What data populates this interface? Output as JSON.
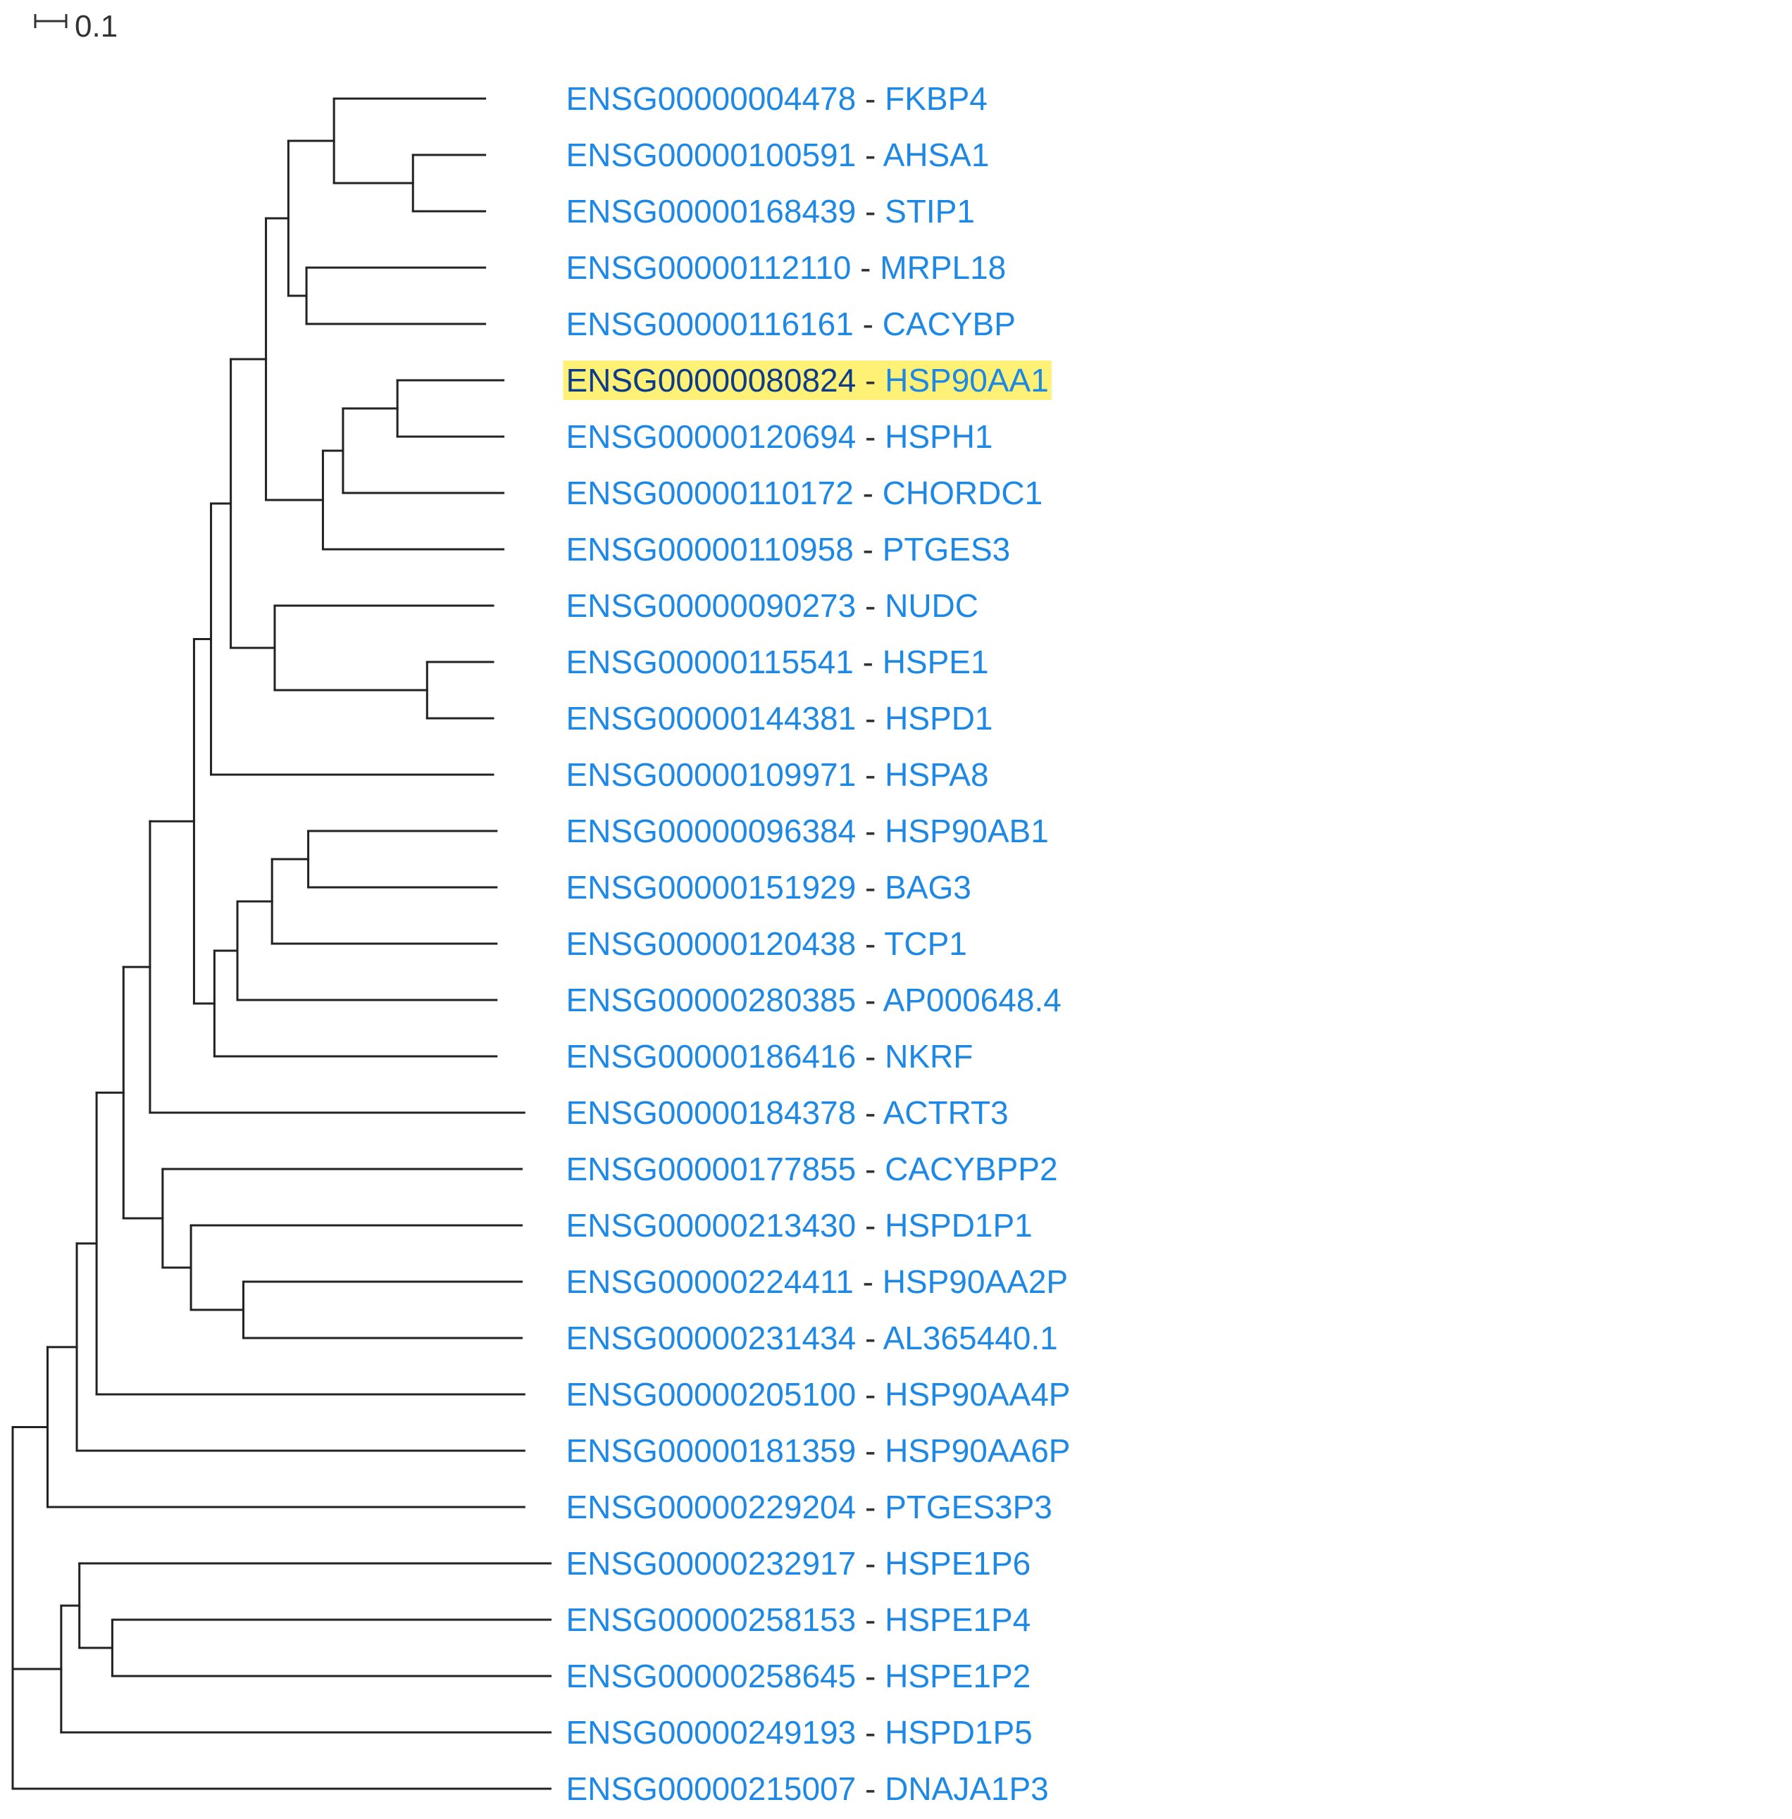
{
  "scale_bar": {
    "label": "0.1",
    "value": 0.1
  },
  "label_separator": " - ",
  "leaves": [
    {
      "gene_id": "ENSG00000004478",
      "symbol": "FKBP4"
    },
    {
      "gene_id": "ENSG00000100591",
      "symbol": "AHSA1"
    },
    {
      "gene_id": "ENSG00000168439",
      "symbol": "STIP1"
    },
    {
      "gene_id": "ENSG00000112110",
      "symbol": "MRPL18"
    },
    {
      "gene_id": "ENSG00000116161",
      "symbol": "CACYBP"
    },
    {
      "gene_id": "ENSG00000080824",
      "symbol": "HSP90AA1",
      "highlighted": true
    },
    {
      "gene_id": "ENSG00000120694",
      "symbol": "HSPH1"
    },
    {
      "gene_id": "ENSG00000110172",
      "symbol": "CHORDC1"
    },
    {
      "gene_id": "ENSG00000110958",
      "symbol": "PTGES3"
    },
    {
      "gene_id": "ENSG00000090273",
      "symbol": "NUDC"
    },
    {
      "gene_id": "ENSG00000115541",
      "symbol": "HSPE1"
    },
    {
      "gene_id": "ENSG00000144381",
      "symbol": "HSPD1"
    },
    {
      "gene_id": "ENSG00000109971",
      "symbol": "HSPA8"
    },
    {
      "gene_id": "ENSG00000096384",
      "symbol": "HSP90AB1"
    },
    {
      "gene_id": "ENSG00000151929",
      "symbol": "BAG3"
    },
    {
      "gene_id": "ENSG00000120438",
      "symbol": "TCP1"
    },
    {
      "gene_id": "ENSG00000280385",
      "symbol": "AP000648.4"
    },
    {
      "gene_id": "ENSG00000186416",
      "symbol": "NKRF"
    },
    {
      "gene_id": "ENSG00000184378",
      "symbol": "ACTRT3"
    },
    {
      "gene_id": "ENSG00000177855",
      "symbol": "CACYBPP2"
    },
    {
      "gene_id": "ENSG00000213430",
      "symbol": "HSPD1P1"
    },
    {
      "gene_id": "ENSG00000224411",
      "symbol": "HSP90AA2P"
    },
    {
      "gene_id": "ENSG00000231434",
      "symbol": "AL365440.1"
    },
    {
      "gene_id": "ENSG00000205100",
      "symbol": "HSP90AA4P"
    },
    {
      "gene_id": "ENSG00000181359",
      "symbol": "HSP90AA6P"
    },
    {
      "gene_id": "ENSG00000229204",
      "symbol": "PTGES3P3"
    },
    {
      "gene_id": "ENSG00000232917",
      "symbol": "HSPE1P6"
    },
    {
      "gene_id": "ENSG00000258153",
      "symbol": "HSPE1P4"
    },
    {
      "gene_id": "ENSG00000258645",
      "symbol": "HSPE1P2"
    },
    {
      "gene_id": "ENSG00000249193",
      "symbol": "HSPD1P5"
    },
    {
      "gene_id": "ENSG00000215007",
      "symbol": "DNAJA1P3"
    }
  ],
  "tree": {
    "name": "root",
    "children": [
      {
        "name": "n-a",
        "length": 0.1125,
        "children": [
          {
            "name": "n-b",
            "length": 0.0944,
            "children": [
              {
                "name": "n-c",
                "length": 0.0638,
                "children": [
                  {
                    "name": "n-d",
                    "length": 0.0868,
                    "children": [
                      {
                        "name": "n-e",
                        "length": 0.0855,
                        "children": [
                          {
                            "name": "n-f",
                            "length": 0.1421,
                            "children": [
                              {
                                "name": "n-g",
                                "length": 0.0548,
                                "children": [
                                  {
                                    "name": "n-h",
                                    "length": 0.0638,
                                    "children": [
                                      {
                                        "name": "n-i",
                                        "length": 0.1135,
                                        "children": [
                                          {
                                            "name": "n-j",
                                            "length": 0.0723,
                                            "children": [
                                              {
                                                "name": "n-k",
                                                "length": 0.1472,
                                                "children": [
                                                  {
                                                    "leaf": 0,
                                                    "length": 0.4874
                                                  },
                                                  {
                                                    "name": "n-l",
                                                    "length": 0.2548,
                                                    "children": [
                                                      {
                                                        "leaf": 1,
                                                        "length": 0.2326
                                                      },
                                                      {
                                                        "leaf": 2,
                                                        "length": 0.2326
                                                      }
                                                    ]
                                                  }
                                                ]
                                              },
                                              {
                                                "name": "n-m",
                                                "length": 0.0584,
                                                "children": [
                                                  {
                                                    "leaf": 3,
                                                    "length": 0.5762
                                                  },
                                                  {
                                                    "leaf": 4,
                                                    "length": 0.5762
                                                  }
                                                ]
                                              }
                                            ]
                                          },
                                          {
                                            "name": "n-n",
                                            "length": 0.1838,
                                            "children": [
                                              {
                                                "name": "n-o",
                                                "length": 0.0648,
                                                "children": [
                                                  {
                                                    "name": "n-p",
                                                    "length": 0.1755,
                                                    "children": [
                                                      {
                                                        "leaf": 5,
                                                        "length": 0.3419
                                                      },
                                                      {
                                                        "leaf": 6,
                                                        "length": 0.3419
                                                      }
                                                    ]
                                                  },
                                                  {
                                                    "leaf": 7,
                                                    "length": 0.5174
                                                  }
                                                ]
                                              },
                                              {
                                                "leaf": 8,
                                                "length": 0.5822
                                              }
                                            ]
                                          }
                                        ]
                                      },
                                      {
                                        "name": "n-q",
                                        "length": 0.1417,
                                        "children": [
                                          {
                                            "leaf": 9,
                                            "length": 0.7047
                                          },
                                          {
                                            "name": "n-r",
                                            "length": 0.4917,
                                            "children": [
                                              {
                                                "leaf": 10,
                                                "length": 0.213
                                              },
                                              {
                                                "leaf": 11,
                                                "length": 0.213
                                              }
                                            ]
                                          }
                                        ]
                                      }
                                    ]
                                  },
                                  {
                                    "leaf": 12,
                                    "length": 0.9101
                                  }
                                ]
                              },
                              {
                                "name": "n-s",
                                "length": 0.0658,
                                "children": [
                                  {
                                    "name": "n-t",
                                    "length": 0.0741,
                                    "children": [
                                      {
                                        "name": "n-u",
                                        "length": 0.1118,
                                        "children": [
                                          {
                                            "name": "n-v",
                                            "length": 0.1168,
                                            "children": [
                                              {
                                                "leaf": 13,
                                                "length": 0.6073
                                              },
                                              {
                                                "leaf": 14,
                                                "length": 0.6073
                                              }
                                            ]
                                          },
                                          {
                                            "leaf": 15,
                                            "length": 0.7241
                                          }
                                        ]
                                      },
                                      {
                                        "leaf": 16,
                                        "length": 0.8359
                                      }
                                    ]
                                  },
                                  {
                                    "leaf": 17,
                                    "length": 0.91
                                  }
                                ]
                              }
                            ]
                          },
                          {
                            "leaf": 18,
                            "length": 1.2076
                          }
                        ]
                      },
                      {
                        "name": "n-w",
                        "length": 0.1263,
                        "children": [
                          {
                            "name": "n-x",
                            "length": 0.0914,
                            "children": [
                              {
                                "name": "n-y",
                                "length": 0.1691,
                                "children": [
                                  {
                                    "leaf": 21,
                                    "length": 0.8977
                                  },
                                  {
                                    "leaf": 22,
                                    "length": 0.8977
                                  }
                                ]
                              },
                              {
                                "leaf": 20,
                                "length": 1.0668
                              }
                            ]
                          },
                          {
                            "leaf": 19,
                            "length": 1.1582
                          }
                        ]
                      }
                    ]
                  },
                  {
                    "leaf": 23,
                    "length": 1.3799
                  }
                ]
              },
              {
                "leaf": 24,
                "length": 1.4437
              }
            ]
          },
          {
            "leaf": 25,
            "length": 1.5381
          }
        ]
      },
      {
        "name": "n-z",
        "length": 0.1565,
        "children": [
          {
            "name": "n-aa",
            "length": 0.0587,
            "children": [
              {
                "name": "n-ab",
                "length": 0.1062,
                "children": [
                  {
                    "leaf": 27,
                    "length": 1.4137
                  },
                  {
                    "leaf": 28,
                    "length": 1.4137
                  }
                ]
              },
              {
                "leaf": 26,
                "length": 1.5199
              }
            ]
          },
          {
            "leaf": 29,
            "length": 1.5786
          }
        ]
      },
      {
        "leaf": 30,
        "length": 1.735
      }
    ]
  }
}
